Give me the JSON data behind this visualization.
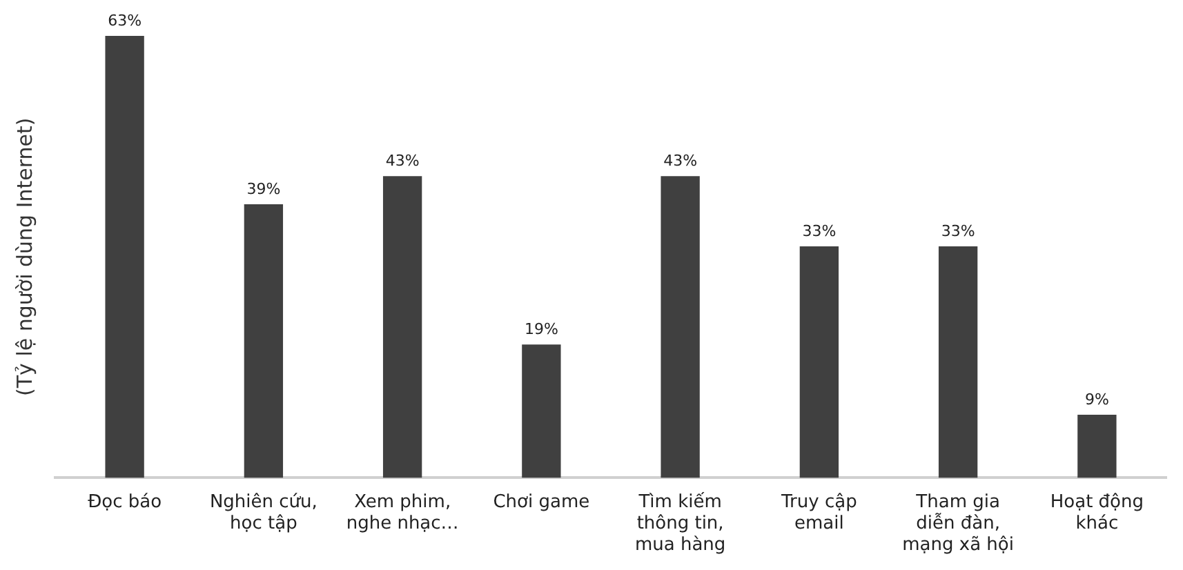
{
  "chart_data": {
    "type": "bar",
    "ylabel": "(Tỷ lệ người dùng Internet)",
    "categories": [
      "Đọc báo",
      "Nghiên cứu, học tập",
      "Xem phim, nghe nhạc…",
      "Chơi game",
      "Tìm kiếm thông tin, mua hàng",
      "Truy cập email",
      "Tham gia diễn đàn, mạng xã hội",
      "Hoạt động khác"
    ],
    "values": [
      63,
      39,
      43,
      19,
      43,
      33,
      33,
      9
    ],
    "value_labels": [
      "63%",
      "39%",
      "43%",
      "19%",
      "43%",
      "33%",
      "33%",
      "9%"
    ],
    "color": "#404040",
    "grid": false,
    "legend": false
  }
}
